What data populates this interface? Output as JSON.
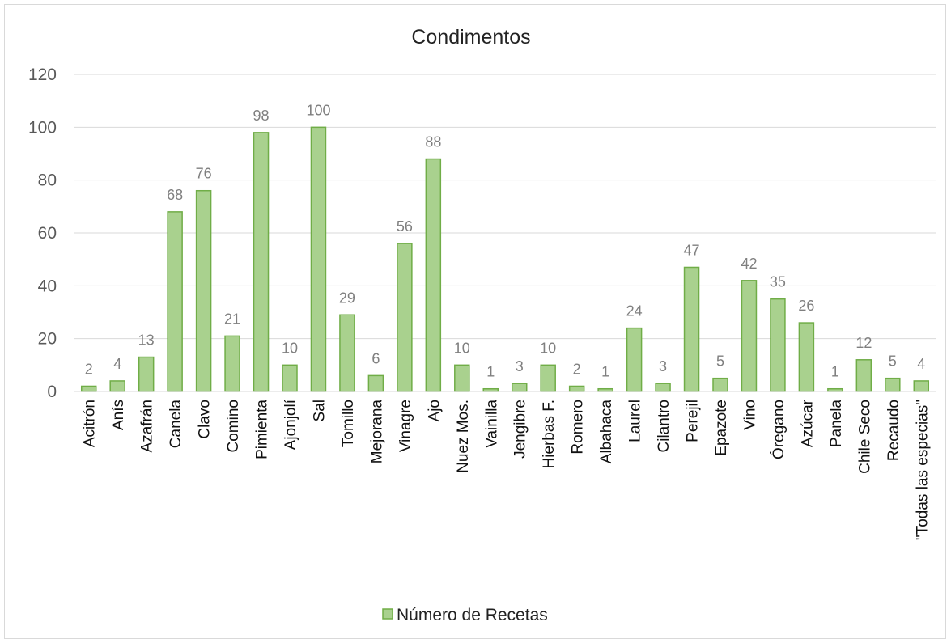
{
  "chart_data": {
    "type": "bar",
    "title": "Condimentos",
    "categories": [
      "Acitrón",
      "Anís",
      "Azafrán",
      "Canela",
      "Clavo",
      "Comino",
      "Pimienta",
      "Ajonjolí",
      "Sal",
      "Tomillo",
      "Mejorana",
      "Vinagre",
      "Ajo",
      "Nuez Mos.",
      "Vainilla",
      "Jengibre",
      "Hierbas F.",
      "Romero",
      "Albahaca",
      "Laurel",
      "Cilantro",
      "Perejil",
      "Epazote",
      "Vino",
      "Óregano",
      "Azúcar",
      "Panela",
      "Chile Seco",
      "Recaudo",
      "\"Todas las especias\""
    ],
    "series": [
      {
        "name": "Número de Recetas",
        "values": [
          2,
          4,
          13,
          68,
          76,
          21,
          98,
          10,
          100,
          29,
          6,
          56,
          88,
          10,
          1,
          3,
          10,
          2,
          1,
          24,
          3,
          47,
          5,
          42,
          35,
          26,
          1,
          12,
          5,
          4
        ]
      }
    ],
    "ylim": [
      0,
      120
    ],
    "yticks": [
      0,
      20,
      40,
      60,
      80,
      100,
      120
    ],
    "grid": true,
    "legend_position": "bottom",
    "colors": {
      "bar_fill": "#a9d18e",
      "bar_stroke": "#70ad47",
      "grid": "#d9d9d9"
    }
  }
}
